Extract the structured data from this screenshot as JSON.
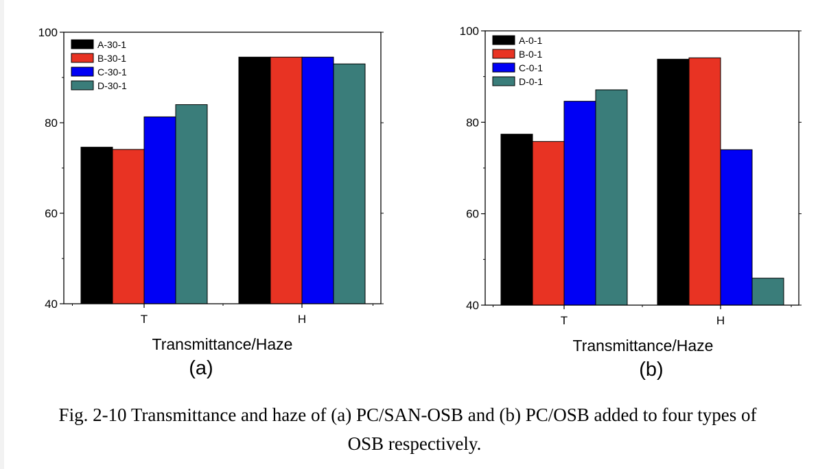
{
  "colors": {
    "A": "#000000",
    "B": "#e83323",
    "C": "#0000f5",
    "D": "#3a7d7a"
  },
  "chart_data": [
    {
      "type": "bar",
      "panel_label": "(a)",
      "xlabel": "Transmittance/Haze",
      "ylabel": "",
      "categories": [
        "T",
        "H"
      ],
      "ylim": [
        40,
        100
      ],
      "yticks": [
        40,
        60,
        80,
        100
      ],
      "legend_position": "top-left",
      "series": [
        {
          "name": "A-30-1",
          "values": [
            74.6,
            94.5
          ]
        },
        {
          "name": "B-30-1",
          "values": [
            74.1,
            94.5
          ]
        },
        {
          "name": "C-30-1",
          "values": [
            81.3,
            94.5
          ]
        },
        {
          "name": "D-30-1",
          "values": [
            84.0,
            93.0
          ]
        }
      ]
    },
    {
      "type": "bar",
      "panel_label": "(b)",
      "xlabel": "Transmittance/Haze",
      "ylabel": "",
      "categories": [
        "T",
        "H"
      ],
      "ylim": [
        40,
        100
      ],
      "yticks": [
        40,
        60,
        80,
        100
      ],
      "legend_position": "top-left",
      "series": [
        {
          "name": "A-0-1",
          "values": [
            77.4,
            93.8
          ]
        },
        {
          "name": "B-0-1",
          "values": [
            75.8,
            94.1
          ]
        },
        {
          "name": "C-0-1",
          "values": [
            84.6,
            74.0
          ]
        },
        {
          "name": "D-0-1",
          "values": [
            87.1,
            45.9
          ]
        }
      ]
    }
  ],
  "caption": {
    "line1": "Fig. 2-10 Transmittance and haze of (a) PC/SAN-OSB and (b) PC/OSB added to four types of",
    "line2": "OSB respectively."
  }
}
